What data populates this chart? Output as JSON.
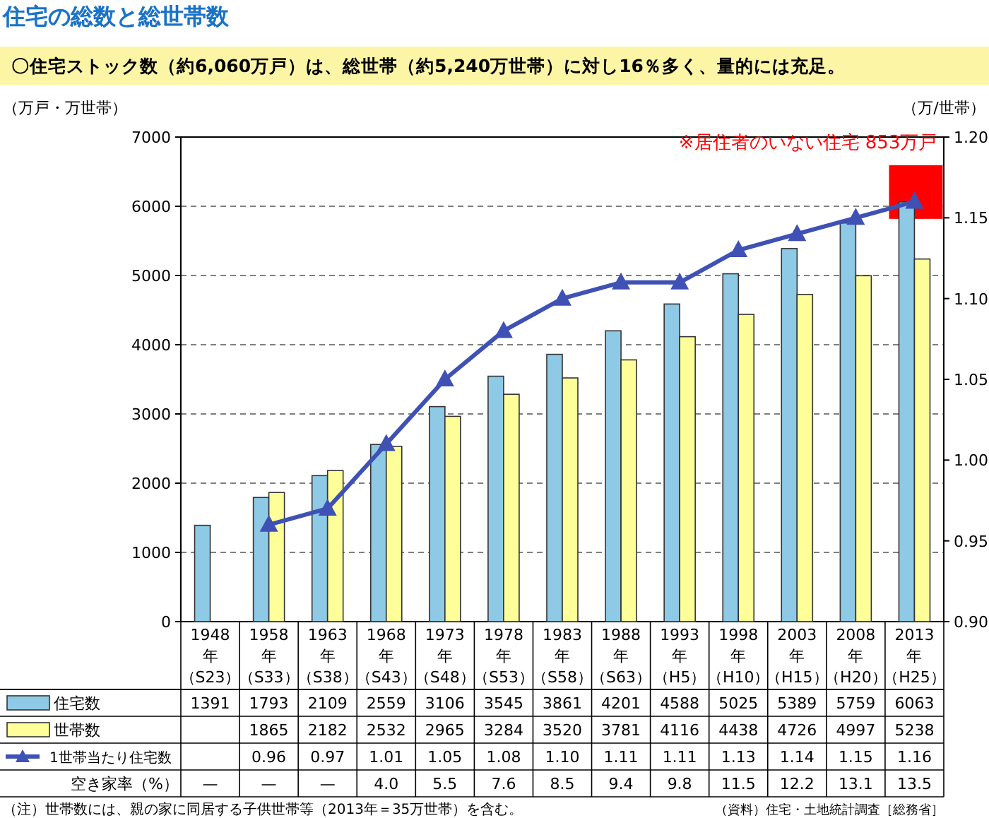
{
  "chart_data": {
    "type": "bar",
    "title": "住宅の総数と総世帯数",
    "subtitle": "〇住宅ストック数（約6,060万戸）は、総世帯（約5,240万世帯）に対し16％多く、量的には充足。",
    "ylabel": "（万戸・万世帯）",
    "y2label": "（万/世帯）",
    "categories": [
      "1948年（S23）",
      "1958年（S33）",
      "1963年（S38）",
      "1968年（S43）",
      "1973年（S48）",
      "1978年（S53）",
      "1983年（S58）",
      "1988年（S63）",
      "1993年（H5）",
      "1998年（H10）",
      "2003年（H15）",
      "2008年（H20）",
      "2013年（H25）"
    ],
    "series": [
      {
        "name": "住宅数",
        "color": "#8ecae6",
        "values": [
          1391,
          1793,
          2109,
          2559,
          3106,
          3545,
          3861,
          4201,
          4588,
          5025,
          5389,
          5759,
          6063
        ],
        "value_labels": [
          "1391",
          "1793",
          "2109",
          "2559",
          "3106",
          "3545",
          "3861",
          "4201",
          "4588",
          "5025",
          "5389",
          "5759",
          "6063"
        ]
      },
      {
        "name": "世帯数",
        "color": "#ffff99",
        "values": [
          null,
          1865,
          2182,
          2532,
          2965,
          3284,
          3520,
          3781,
          4116,
          4438,
          4726,
          4997,
          5238
        ],
        "value_labels": [
          null,
          "1865",
          "2182",
          "2532",
          "2965",
          "3284",
          "3520",
          "3781",
          "4116",
          "4438",
          "4726",
          "4997",
          "5238"
        ]
      },
      {
        "name": "1世帯当たり住宅数",
        "type": "line",
        "axis": "y2",
        "color": "#3f51b5",
        "marker": "triangle",
        "values": [
          null,
          0.96,
          0.97,
          1.01,
          1.05,
          1.08,
          1.1,
          1.11,
          1.11,
          1.13,
          1.14,
          1.15,
          1.16
        ],
        "value_labels": [
          null,
          "0.96",
          "0.97",
          "1.01",
          "1.05",
          "1.08",
          "1.10",
          "1.11",
          "1.11",
          "1.13",
          "1.14",
          "1.15",
          "1.16"
        ]
      }
    ],
    "ylim": [
      0,
      7000
    ],
    "yticks": [
      0,
      1000,
      2000,
      3000,
      4000,
      5000,
      6000,
      7000
    ],
    "y2lim": [
      0.9,
      1.2
    ],
    "y2ticks": [
      {
        "value": 0.9,
        "label": "0.90"
      },
      {
        "value": 0.95,
        "label": "0.95"
      },
      {
        "value": 1.0,
        "label": "1.00"
      },
      {
        "value": 1.05,
        "label": "1.05"
      },
      {
        "value": 1.1,
        "label": "1.10"
      },
      {
        "value": 1.15,
        "label": "1.15"
      },
      {
        "value": 1.2,
        "label": "1.20"
      }
    ],
    "grid": "y",
    "legend": "bottom left",
    "annotations": [
      {
        "text": "※居住者のいない住宅 853万戸",
        "x": "2013年（H25）",
        "y": 6063
      },
      "（注）世帯数には、親の家に同居する子供世帯等（2013年＝35万世帯）を含む。",
      "（資料）住宅・土地統計調査［総務省］",
      "空き家率（%）",
      "—",
      "—",
      "—",
      "4.0",
      "5.5",
      "7.6",
      "8.5",
      "9.4",
      "9.8",
      "11.5",
      "12.2",
      "13.1",
      "13.5"
    ]
  }
}
